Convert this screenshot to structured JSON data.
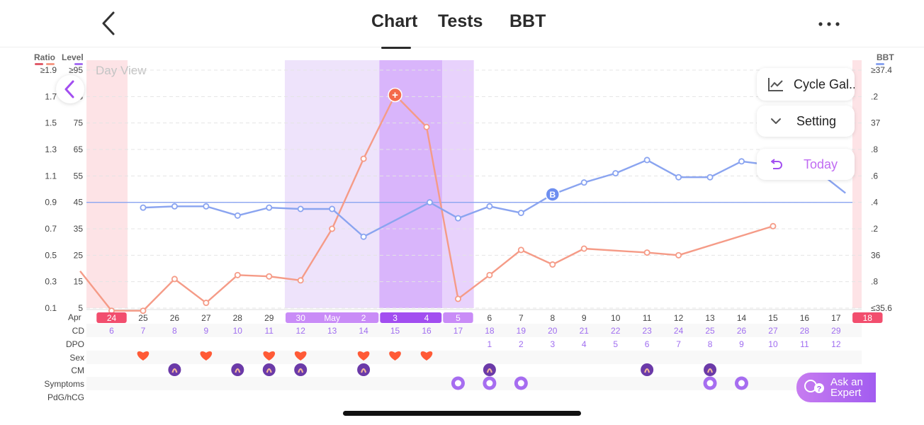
{
  "header": {
    "tabs": [
      {
        "label": "Chart",
        "active": true
      },
      {
        "label": "Tests",
        "active": false
      },
      {
        "label": "BBT",
        "active": false
      }
    ]
  },
  "axes": {
    "ratio_header": "Ratio",
    "level_header": "Level",
    "bbt_header": "BBT",
    "ratio_ticks": [
      "≥1.9",
      "1.7",
      "1.5",
      "1.3",
      "1.1",
      "0.9",
      "0.7",
      "0.5",
      "0.3",
      "0.1"
    ],
    "level_ticks": [
      "≥95",
      "85",
      "75",
      "65",
      "55",
      "45",
      "35",
      "25",
      "15",
      "5"
    ],
    "bbt_ticks": [
      "≥37.4",
      ".2",
      "37",
      ".8",
      ".6",
      ".4",
      ".2",
      "36",
      ".8",
      "≤35.6"
    ]
  },
  "chart_data": {
    "type": "line",
    "view_label": "Day View",
    "dates": [
      {
        "label": "24",
        "hl": "red"
      },
      {
        "label": "25"
      },
      {
        "label": "26"
      },
      {
        "label": "27"
      },
      {
        "label": "28"
      },
      {
        "label": "29"
      },
      {
        "label": "30",
        "hl": "purple"
      },
      {
        "label": "May",
        "hl": "purple"
      },
      {
        "label": "2",
        "hl": "purple"
      },
      {
        "label": "3",
        "hl": "dark"
      },
      {
        "label": "4",
        "hl": "dark"
      },
      {
        "label": "5",
        "hl": "purple"
      },
      {
        "label": "6"
      },
      {
        "label": "7"
      },
      {
        "label": "8"
      },
      {
        "label": "9"
      },
      {
        "label": "10"
      },
      {
        "label": "11"
      },
      {
        "label": "12"
      },
      {
        "label": "13"
      },
      {
        "label": "14"
      },
      {
        "label": "15"
      },
      {
        "label": "16"
      },
      {
        "label": "17"
      },
      {
        "label": "18",
        "hl": "red"
      }
    ],
    "month_label": "Apr",
    "rows": [
      {
        "label": "CD",
        "values": [
          "6",
          "7",
          "8",
          "9",
          "10",
          "11",
          "12",
          "13",
          "14",
          "15",
          "16",
          "17",
          "18",
          "19",
          "20",
          "21",
          "22",
          "23",
          "24",
          "25",
          "26",
          "27",
          "28",
          "29",
          ""
        ]
      },
      {
        "label": "DPO",
        "values": [
          "",
          "",
          "",
          "",
          "",
          "",
          "",
          "",
          "",
          "",
          "",
          "",
          "1",
          "2",
          "3",
          "4",
          "5",
          "6",
          "7",
          "8",
          "9",
          "10",
          "11",
          "12",
          ""
        ]
      },
      {
        "label": "Sex",
        "values": []
      },
      {
        "label": "CM",
        "values": []
      },
      {
        "label": "Symptoms",
        "values": []
      },
      {
        "label": "PdG/hCG",
        "values": []
      }
    ],
    "sex_days": [
      1,
      3,
      5,
      6,
      8,
      9,
      10
    ],
    "cm_days": [
      2,
      4,
      5,
      6,
      8,
      12,
      17,
      19
    ],
    "symptom_days": [
      11,
      12,
      13,
      19,
      20,
      22
    ],
    "level_series": {
      "name": "Level",
      "color": "#8aa4f0",
      "points": [
        [
          1,
          43
        ],
        [
          2,
          43.5
        ],
        [
          3,
          43.5
        ],
        [
          4,
          40
        ],
        [
          5,
          43
        ],
        [
          6,
          42.5
        ],
        [
          7,
          42.5
        ],
        [
          8,
          32
        ],
        [
          10.1,
          45
        ],
        [
          11,
          39
        ],
        [
          12,
          43.5
        ],
        [
          13,
          41
        ],
        [
          14,
          48
        ],
        [
          15,
          52.5
        ],
        [
          16,
          56
        ],
        [
          17,
          61
        ],
        [
          18,
          54.5
        ],
        [
          19,
          54.5
        ],
        [
          20,
          60.5
        ],
        [
          21,
          59
        ],
        [
          22.5,
          56
        ],
        [
          23.3,
          48.5
        ]
      ],
      "markers": [
        {
          "day": 14,
          "label": "B"
        }
      ]
    },
    "ratio_series": {
      "name": "Ratio",
      "color": "#f59b87",
      "points": [
        [
          -1,
          0.38
        ],
        [
          0,
          0.08
        ],
        [
          1,
          0.08
        ],
        [
          2,
          0.32
        ],
        [
          3,
          0.14
        ],
        [
          4,
          0.35
        ],
        [
          5,
          0.34
        ],
        [
          6,
          0.31
        ],
        [
          7,
          0.7
        ],
        [
          8,
          1.23
        ],
        [
          9,
          2.21
        ],
        [
          10,
          1.47
        ],
        [
          11,
          0.17
        ],
        [
          12,
          0.35
        ],
        [
          13,
          0.54
        ],
        [
          14,
          0.43
        ],
        [
          15,
          0.55
        ],
        [
          17,
          0.52
        ],
        [
          18,
          0.5
        ],
        [
          21,
          0.72
        ]
      ],
      "peak_marker": {
        "day": 9,
        "label": "+"
      }
    },
    "threshold_level": 45
  },
  "floating": {
    "cycle_gallery": "Cycle Gal...",
    "setting": "Setting",
    "today": "Today"
  },
  "ask_expert": {
    "line1": "Ask an",
    "line2": "Expert"
  },
  "colors": {
    "accent_purple": "#a24ef0",
    "period_red": "#f24e6e",
    "fertile_light": "#eee3fb",
    "fertile_mid": "#e8d2fc",
    "fertile_dark": "#d9b5fb",
    "heart_orange": "#ff5a36",
    "label_purple": "#a06ef0"
  }
}
